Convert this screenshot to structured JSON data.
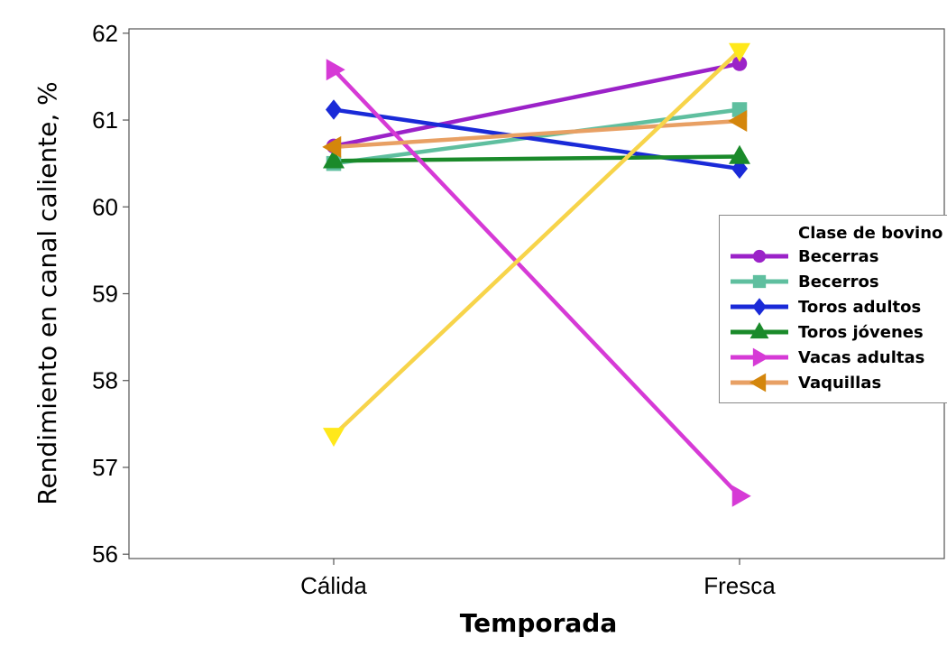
{
  "chart_data": {
    "type": "line",
    "title": "",
    "xlabel": "Temporada",
    "ylabel": "Rendimiento en canal caliente, %",
    "categories": [
      "Cálida",
      "Fresca"
    ],
    "ylim": [
      55.95,
      62.05
    ],
    "yticks": [
      56,
      57,
      58,
      59,
      60,
      61,
      62
    ],
    "grid": false,
    "legend": {
      "title": "Clase de bovino",
      "placement": "right"
    },
    "series": [
      {
        "name": "Becerras",
        "values": [
          60.7,
          61.65
        ],
        "color": "#9b22c8",
        "marker": "circle"
      },
      {
        "name": "Becerros",
        "values": [
          60.5,
          61.12
        ],
        "color": "#5fbf9f",
        "marker": "square"
      },
      {
        "name": "Toros adultos",
        "values": [
          61.12,
          60.44
        ],
        "color": "#1a2ad8",
        "marker": "diamond"
      },
      {
        "name": "Toros jóvenes",
        "values": [
          60.53,
          60.58
        ],
        "color": "#1a8a2a",
        "marker": "triangle-up"
      },
      {
        "name": "Vacas adultas",
        "values": [
          61.58,
          56.67
        ],
        "color": "#d63ad6",
        "marker": "triangle-right"
      },
      {
        "name": "Vaquillas",
        "values": [
          60.69,
          60.99
        ],
        "color": "#e8a064",
        "marker": "triangle-left",
        "marker_color": "#d4860c"
      },
      {
        "name": "",
        "values": [
          57.37,
          61.8
        ],
        "color": "#f7d44a",
        "marker": "triangle-down",
        "marker_color": "#ffe81a"
      }
    ]
  }
}
